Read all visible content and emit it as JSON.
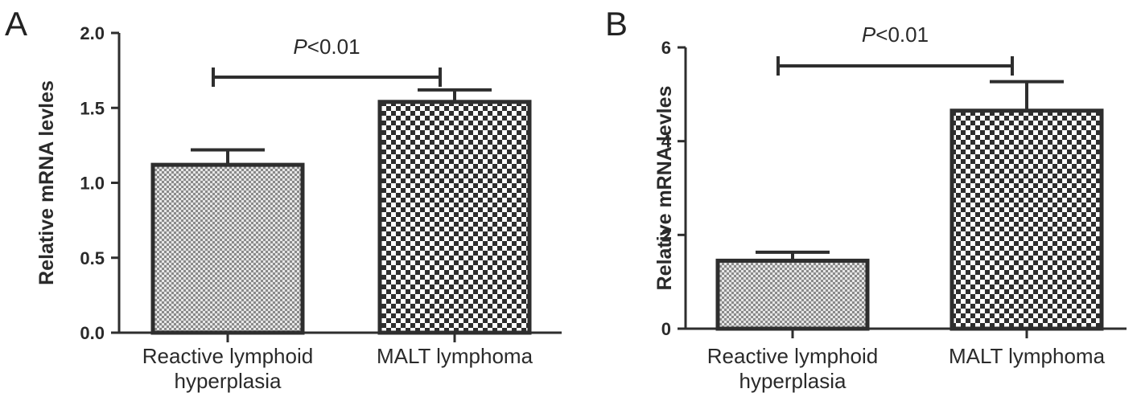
{
  "chart_data": [
    {
      "panel": "A",
      "type": "bar",
      "categories": [
        [
          "Reactive lymphoid",
          "hyperplasia"
        ],
        [
          "MALT lymphoma"
        ]
      ],
      "values": [
        1.12,
        1.54
      ],
      "errors": [
        0.1,
        0.08
      ],
      "ylabel": "Relative mRNA levles",
      "ylim": [
        0,
        2.0
      ],
      "yticks": [
        "0.0",
        "0.5",
        "1.0",
        "1.5",
        "2.0"
      ],
      "annotation": {
        "p": "P",
        "text": "<0.01"
      },
      "bar_fill": [
        "fine-dot",
        "checker"
      ]
    },
    {
      "panel": "B",
      "type": "bar",
      "categories": [
        [
          "Reactive lymphoid",
          "hyperplasia"
        ],
        [
          "MALT lymphoma"
        ]
      ],
      "values": [
        1.45,
        4.65
      ],
      "errors": [
        0.18,
        0.62
      ],
      "ylabel": "Relative mRNA levles",
      "ylim": [
        0,
        6
      ],
      "yticks": [
        "0",
        "2",
        "4",
        "6"
      ],
      "annotation": {
        "p": "P",
        "text": "<0.01"
      },
      "bar_fill": [
        "fine-dot",
        "checker"
      ]
    }
  ],
  "colors": {
    "stroke": "#2e2e2e",
    "text": "#2a2a2a"
  }
}
